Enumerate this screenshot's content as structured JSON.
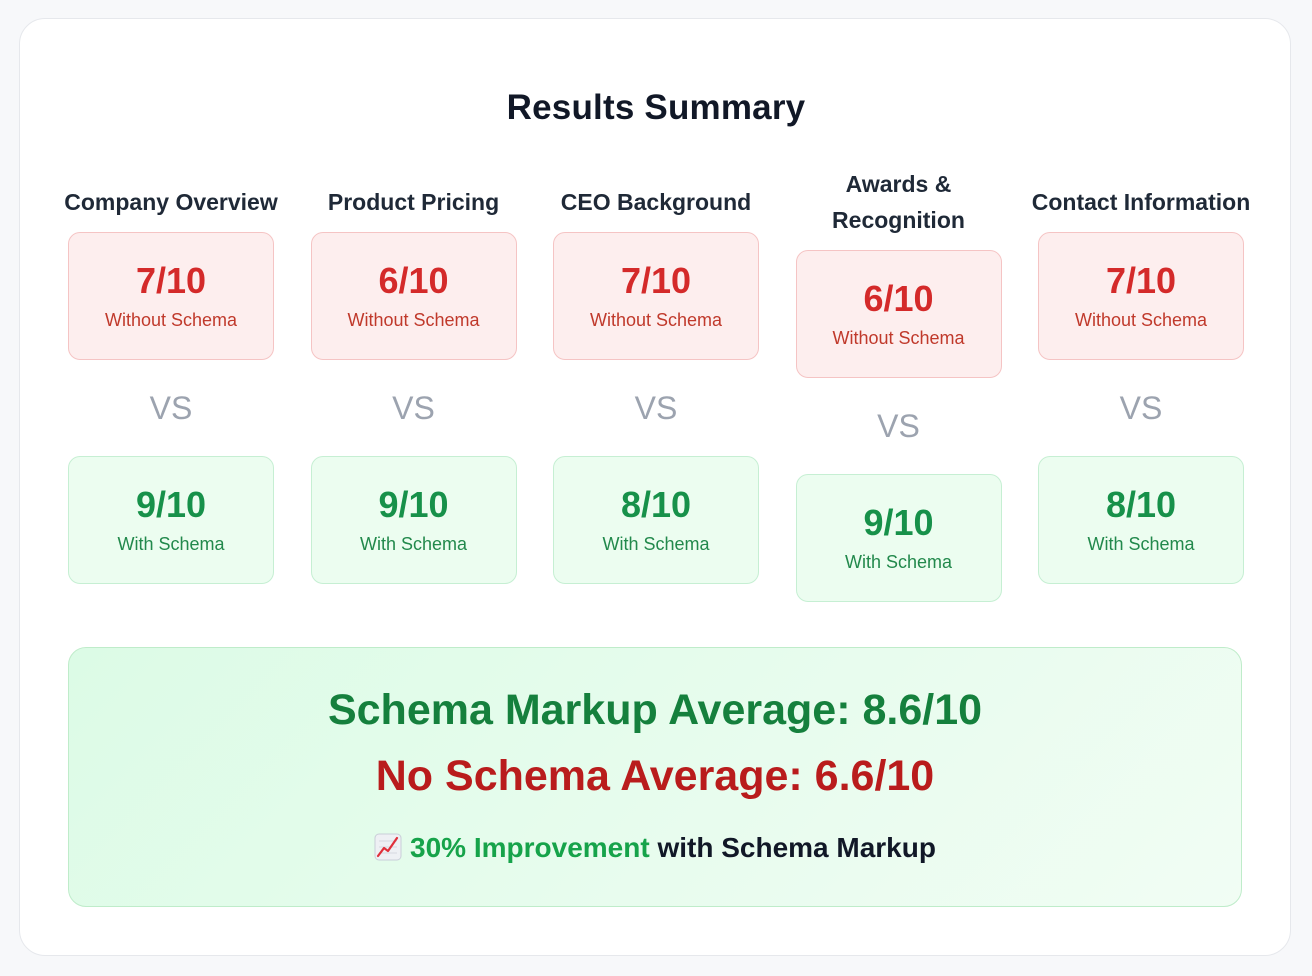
{
  "title": "Results Summary",
  "columns": [
    {
      "label": "Company Overview",
      "without_score": "7/10",
      "without_label": "Without Schema",
      "vs": "VS",
      "with_score": "9/10",
      "with_label": "With Schema"
    },
    {
      "label": "Product Pricing",
      "without_score": "6/10",
      "without_label": "Without Schema",
      "vs": "VS",
      "with_score": "9/10",
      "with_label": "With Schema"
    },
    {
      "label": "CEO Background",
      "without_score": "7/10",
      "without_label": "Without Schema",
      "vs": "VS",
      "with_score": "8/10",
      "with_label": "With Schema"
    },
    {
      "label": "Awards & Recognition",
      "without_score": "6/10",
      "without_label": "Without Schema",
      "vs": "VS",
      "with_score": "9/10",
      "with_label": "With Schema"
    },
    {
      "label": "Contact Information",
      "without_score": "7/10",
      "without_label": "Without Schema",
      "vs": "VS",
      "with_score": "8/10",
      "with_label": "With Schema"
    }
  ],
  "summary": {
    "schema_average": "Schema Markup Average: 8.6/10",
    "no_schema_average": "No Schema Average: 6.6/10",
    "improvement_highlight": "30% Improvement",
    "improvement_rest": " with Schema Markup",
    "icon": "chart-increasing-icon"
  },
  "colors": {
    "bad": "#d42a2a",
    "good": "#17914a",
    "vs": "#9ca3af"
  }
}
